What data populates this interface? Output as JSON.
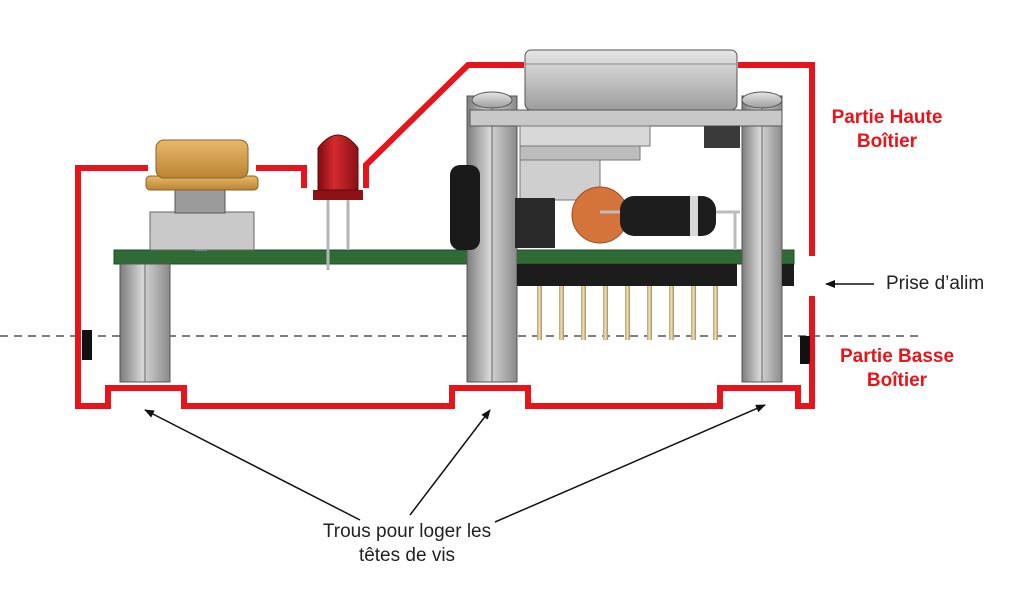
{
  "colors": {
    "enclosure": "#e8141b",
    "pcb": "#2f6b35",
    "spacer": "#9a9a9a",
    "led": "#b3161b",
    "button_cap": "#d9a24f",
    "capacitor": "#d4743a"
  },
  "labels": {
    "top_part_line1": "Partie Haute",
    "top_part_line2": "Boîtier",
    "bottom_part_line1": "Partie Basse",
    "bottom_part_line2": "Boîtier",
    "power_jack": "Prise d’alim",
    "holes_line1": "Trous pour loger les",
    "holes_line2": "têtes de vis"
  }
}
